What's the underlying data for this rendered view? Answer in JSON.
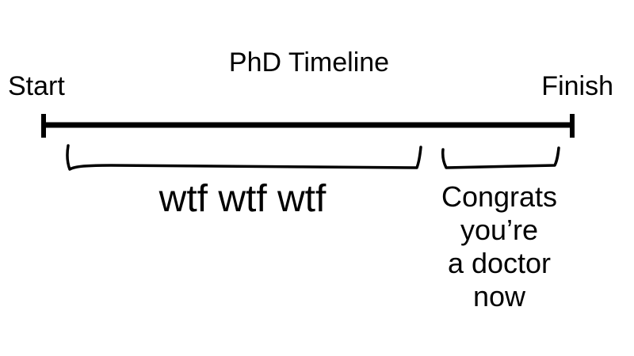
{
  "diagram": {
    "title": "PhD Timeline",
    "start_label": "Start",
    "finish_label": "Finish",
    "phases": [
      {
        "label": "wtf wtf wtf"
      },
      {
        "label_lines": [
          "Congrats",
          "you’re",
          "a doctor",
          "now"
        ]
      }
    ],
    "colors": {
      "ink": "#000000",
      "background": "#ffffff"
    }
  }
}
